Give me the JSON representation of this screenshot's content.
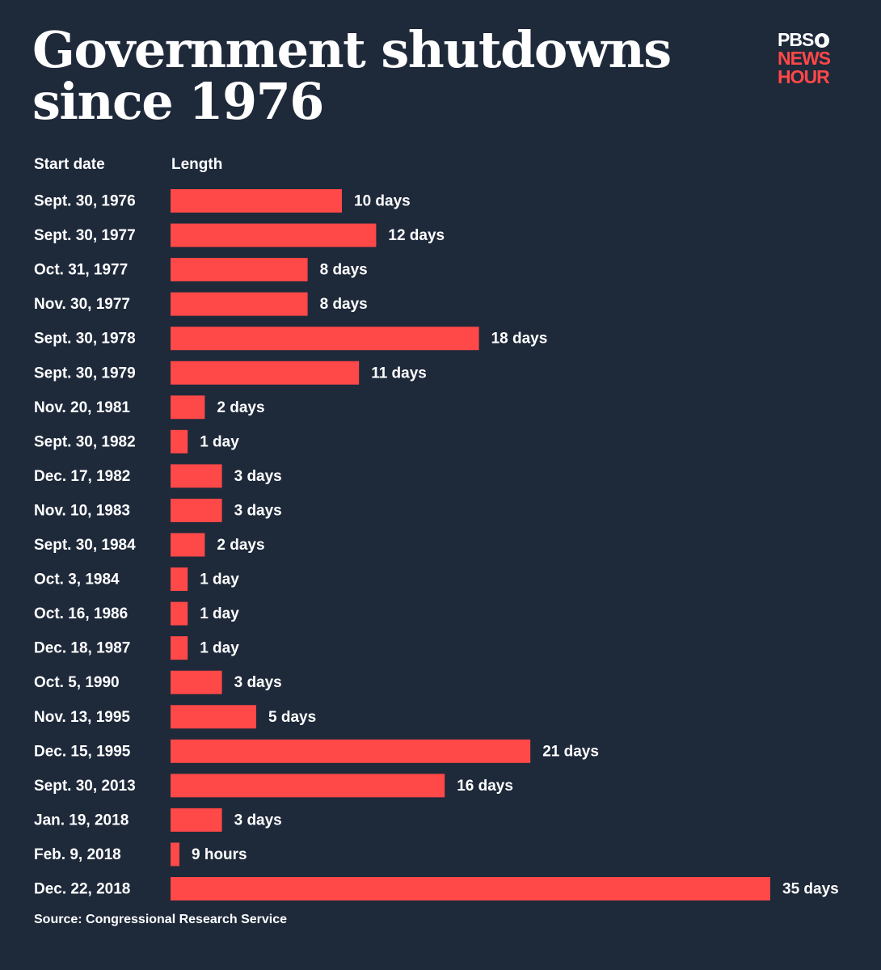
{
  "header": {
    "title_line1": "Government shutdowns",
    "title_line2": "since 1976",
    "logo_line1": "PBS",
    "logo_line2": "NEWS",
    "logo_line3": "HOUR"
  },
  "colors": {
    "background": "#1e293a",
    "bar": "#ff4848",
    "text": "#ffffff"
  },
  "chart_data": {
    "type": "bar",
    "orientation": "horizontal",
    "title": "Government shutdowns since 1976",
    "category_header": "Start date",
    "value_header": "Length",
    "unit": "days",
    "categories": [
      "Sept. 30, 1976",
      "Sept. 30, 1977",
      "Oct. 31, 1977",
      "Nov. 30, 1977",
      "Sept. 30, 1978",
      "Sept. 30, 1979",
      "Nov. 20, 1981",
      "Sept. 30, 1982",
      "Dec. 17, 1982",
      "Nov. 10, 1983",
      "Sept. 30, 1984",
      "Oct. 3, 1984",
      "Oct. 16, 1986",
      "Dec. 18, 1987",
      "Oct. 5, 1990",
      "Nov. 13, 1995",
      "Dec. 15, 1995",
      "Sept. 30, 2013",
      "Jan. 19, 2018",
      "Feb. 9, 2018",
      "Dec. 22, 2018"
    ],
    "values": [
      10,
      12,
      8,
      8,
      18,
      11,
      2,
      1,
      3,
      3,
      2,
      1,
      1,
      1,
      3,
      5,
      21,
      16,
      3,
      0.375,
      35
    ],
    "value_labels": [
      "10 days",
      "12 days",
      "8 days",
      "8 days",
      "18 days",
      "11 days",
      "2 days",
      "1 day",
      "3 days",
      "3 days",
      "2 days",
      "1 day",
      "1 day",
      "1 day",
      "3 days",
      "5 days",
      "21 days",
      "16 days",
      "3 days",
      "9 hours",
      "35 days"
    ],
    "xlim": [
      0,
      35
    ],
    "grid": false,
    "legend": "none"
  },
  "footer": {
    "source": "Source: Congressional Research Service"
  }
}
